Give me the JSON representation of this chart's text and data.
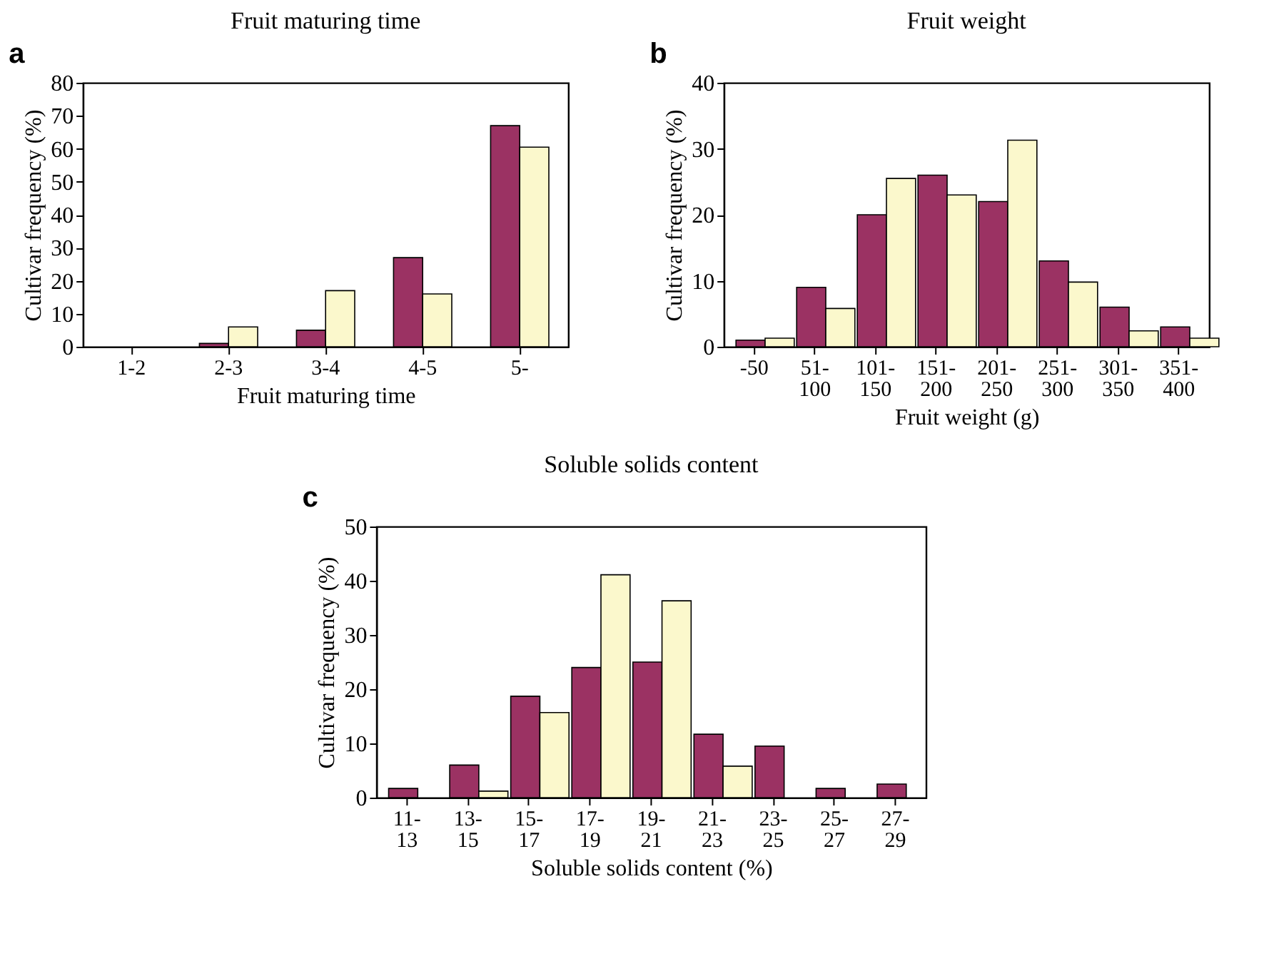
{
  "chart_data": [
    {
      "type": "bar",
      "title": "Fruit maturing time",
      "xlabel": "Fruit maturing time",
      "ylabel": "Cultivar frequency (%)",
      "annotations": [
        "a"
      ],
      "grid": false,
      "categories": [
        "1-2",
        "2-3",
        "3-4",
        "4-5",
        "5-"
      ],
      "series": [
        {
          "color": "#9b3263",
          "values": [
            null,
            1,
            5,
            27,
            67
          ]
        },
        {
          "color": "#fbf8cc",
          "values": [
            null,
            6,
            17,
            16,
            60.5
          ]
        }
      ],
      "ylim": [
        0,
        80
      ],
      "yticks": [
        0,
        10,
        20,
        30,
        40,
        50,
        60,
        70,
        80
      ]
    },
    {
      "type": "bar",
      "title": "Fruit weight",
      "xlabel": "Fruit weight (g)",
      "ylabel": "Cultivar frequency (%)",
      "annotations": [
        "b"
      ],
      "grid": false,
      "categories": [
        "-50",
        "51-\n100",
        "101-\n150",
        "151-\n200",
        "201-\n250",
        "251-\n300",
        "301-\n350",
        "351-\n400"
      ],
      "series": [
        {
          "color": "#9b3263",
          "values": [
            1,
            9,
            20,
            26,
            22,
            13,
            6,
            3
          ]
        },
        {
          "color": "#fbf8cc",
          "values": [
            1.3,
            5.8,
            25.5,
            23,
            31.3,
            9.8,
            2.4,
            1.3
          ]
        }
      ],
      "ylim": [
        0,
        40
      ],
      "yticks": [
        0,
        10,
        20,
        30,
        40
      ]
    },
    {
      "type": "bar",
      "title": "Soluble solids content",
      "xlabel": "Soluble solids content (%)",
      "ylabel": "Cultivar frequency (%)",
      "annotations": [
        "c"
      ],
      "grid": false,
      "categories": [
        "11-\n13",
        "13-\n15",
        "15-\n17",
        "17-\n19",
        "19-\n21",
        "21-\n23",
        "23-\n25",
        "25-\n27",
        "27-\n29"
      ],
      "series": [
        {
          "color": "#9b3263",
          "values": [
            1.7,
            6,
            18.7,
            24,
            25,
            11.7,
            9.5,
            1.7,
            2.5
          ]
        },
        {
          "color": "#fbf8cc",
          "values": [
            null,
            1.2,
            15.7,
            41.1,
            36.3,
            5.8,
            null,
            null,
            null
          ]
        }
      ],
      "ylim": [
        0,
        50
      ],
      "yticks": [
        0,
        10,
        20,
        30,
        40,
        50
      ]
    }
  ]
}
